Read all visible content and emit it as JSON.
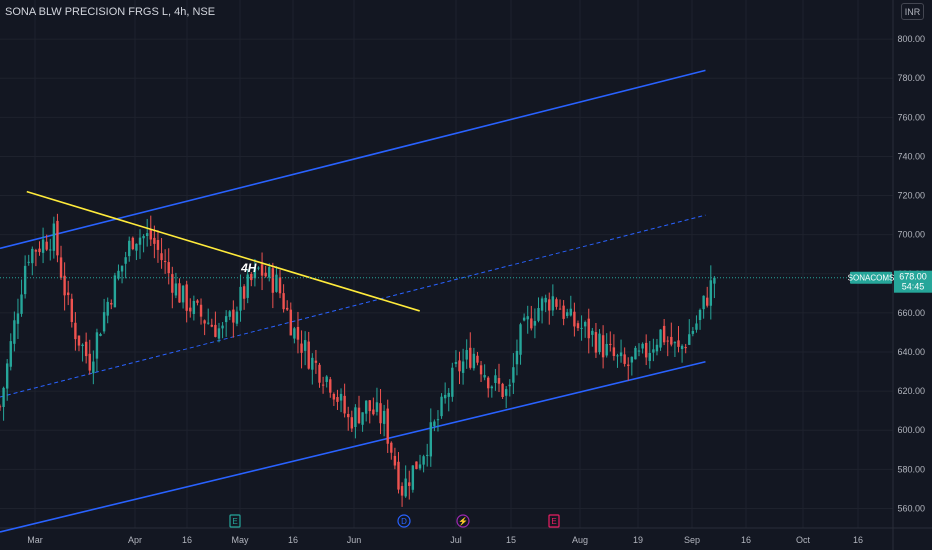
{
  "header": {
    "title": "SONA BLW PRECISION FRGS L, 4h, NSE",
    "currency": "INR"
  },
  "symbol_tag": {
    "name": "SONACOMS",
    "price": "678.00",
    "countdown": "54:45"
  },
  "colors": {
    "background": "#131722",
    "up_candle": "#26a69a",
    "down_candle": "#ef5350",
    "channel": "#2962ff",
    "trendline": "#ffeb3b",
    "price_tag": "#26a69a"
  },
  "chart_data": {
    "type": "candlestick",
    "title": "SONA BLW PRECISION FRGS L, 4h, NSE",
    "annotation": "4H",
    "y_axis": {
      "range": [
        550,
        820
      ],
      "ticks": [
        "800.00",
        "780.00",
        "760.00",
        "740.00",
        "720.00",
        "700.00",
        "680.00",
        "660.00",
        "640.00",
        "620.00",
        "600.00",
        "580.00",
        "560.00"
      ]
    },
    "x_axis": {
      "ticks": [
        "Mar",
        "Apr",
        "16",
        "May",
        "16",
        "Jun",
        "Jul",
        "15",
        "Aug",
        "19",
        "Sep",
        "16",
        "Oct",
        "16"
      ]
    },
    "last_price": 678.0,
    "price_path": [
      [
        0,
        612
      ],
      [
        0.03,
        690
      ],
      [
        0.06,
        700
      ],
      [
        0.08,
        655
      ],
      [
        0.1,
        635
      ],
      [
        0.12,
        665
      ],
      [
        0.15,
        700
      ],
      [
        0.17,
        698
      ],
      [
        0.2,
        670
      ],
      [
        0.22,
        660
      ],
      [
        0.25,
        650
      ],
      [
        0.27,
        668
      ],
      [
        0.29,
        682
      ],
      [
        0.31,
        675
      ],
      [
        0.33,
        650
      ],
      [
        0.35,
        635
      ],
      [
        0.37,
        625
      ],
      [
        0.39,
        605
      ],
      [
        0.41,
        612
      ],
      [
        0.43,
        605
      ],
      [
        0.45,
        570
      ],
      [
        0.47,
        586
      ],
      [
        0.49,
        605
      ],
      [
        0.51,
        630
      ],
      [
        0.53,
        640
      ],
      [
        0.55,
        625
      ],
      [
        0.57,
        618
      ],
      [
        0.58,
        645
      ],
      [
        0.6,
        662
      ],
      [
        0.62,
        668
      ],
      [
        0.64,
        655
      ],
      [
        0.66,
        650
      ],
      [
        0.68,
        640
      ],
      [
        0.7,
        632
      ],
      [
        0.72,
        638
      ],
      [
        0.74,
        650
      ],
      [
        0.76,
        640
      ],
      [
        0.78,
        655
      ],
      [
        0.8,
        678
      ]
    ],
    "lines": {
      "channel_upper": [
        [
          0,
          693
        ],
        [
          0.79,
          784
        ]
      ],
      "channel_middle": [
        [
          0,
          617
        ],
        [
          0.79,
          710
        ]
      ],
      "channel_lower": [
        [
          0,
          548
        ],
        [
          0.79,
          635
        ]
      ],
      "trendline": [
        [
          0.03,
          722
        ],
        [
          0.47,
          661
        ]
      ]
    },
    "event_markers": [
      "E",
      "D",
      "⚡",
      "E"
    ]
  }
}
